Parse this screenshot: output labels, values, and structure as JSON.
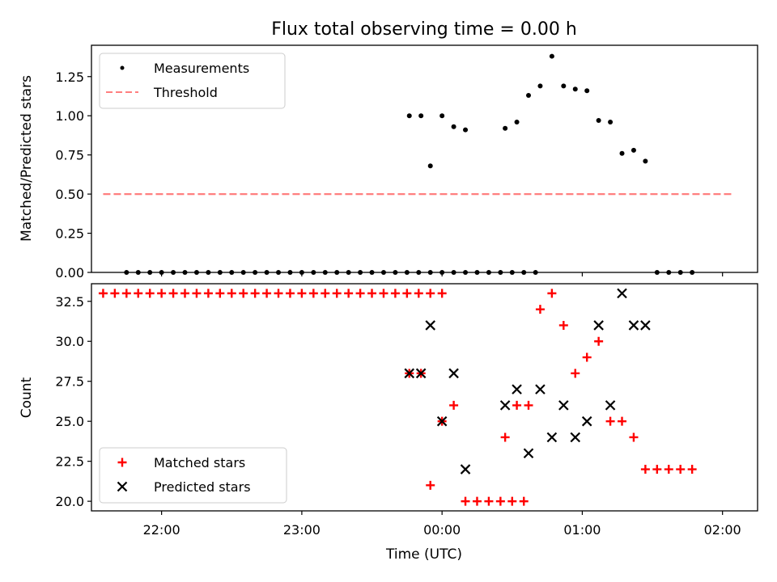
{
  "chart_data": [
    {
      "type": "scatter",
      "title": "Flux total observing time = 0.00 h",
      "xlabel": "",
      "ylabel": "Matched/Predicted stars",
      "x_unit": "time (UTC)",
      "xlim": [
        "21:30",
        "02:15"
      ],
      "ylim": [
        0,
        1.45
      ],
      "yticks": [
        0.0,
        0.25,
        0.5,
        0.75,
        1.0,
        1.25
      ],
      "ytick_labels": [
        "0.00",
        "0.25",
        "0.50",
        "0.75",
        "1.00",
        "1.25"
      ],
      "legend_position": "upper left",
      "grid": false,
      "series": [
        {
          "name": "Measurements",
          "marker": "dot",
          "color": "#000000",
          "points": [
            [
              "21:45",
              0
            ],
            [
              "21:50",
              0
            ],
            [
              "21:55",
              0
            ],
            [
              "22:00",
              0
            ],
            [
              "22:05",
              0
            ],
            [
              "22:10",
              0
            ],
            [
              "22:15",
              0
            ],
            [
              "22:20",
              0
            ],
            [
              "22:25",
              0
            ],
            [
              "22:30",
              0
            ],
            [
              "22:35",
              0
            ],
            [
              "22:40",
              0
            ],
            [
              "22:45",
              0
            ],
            [
              "22:50",
              0
            ],
            [
              "22:55",
              0
            ],
            [
              "23:00",
              0
            ],
            [
              "23:05",
              0
            ],
            [
              "23:10",
              0
            ],
            [
              "23:15",
              0
            ],
            [
              "23:20",
              0
            ],
            [
              "23:25",
              0
            ],
            [
              "23:30",
              0
            ],
            [
              "23:35",
              0
            ],
            [
              "23:40",
              0
            ],
            [
              "23:45",
              0
            ],
            [
              "23:50",
              0
            ],
            [
              "23:55",
              0
            ],
            [
              "00:00",
              0
            ],
            [
              "00:05",
              0
            ],
            [
              "00:10",
              0
            ],
            [
              "00:15",
              0
            ],
            [
              "00:20",
              0
            ],
            [
              "00:25",
              0
            ],
            [
              "00:30",
              0
            ],
            [
              "00:35",
              0
            ],
            [
              "00:40",
              0
            ],
            [
              "23:46",
              1.0
            ],
            [
              "23:51",
              1.0
            ],
            [
              "23:55",
              0.68
            ],
            [
              "00:00",
              1.0
            ],
            [
              "00:05",
              0.93
            ],
            [
              "00:10",
              0.91
            ],
            [
              "00:27",
              0.92
            ],
            [
              "00:32",
              0.96
            ],
            [
              "00:37",
              1.13
            ],
            [
              "00:42",
              1.19
            ],
            [
              "00:47",
              1.38
            ],
            [
              "00:52",
              1.19
            ],
            [
              "00:57",
              1.17
            ],
            [
              "01:02",
              1.16
            ],
            [
              "01:07",
              0.97
            ],
            [
              "01:12",
              0.96
            ],
            [
              "01:17",
              0.76
            ],
            [
              "01:22",
              0.78
            ],
            [
              "01:27",
              0.71
            ],
            [
              "01:32",
              0
            ],
            [
              "01:37",
              0
            ],
            [
              "01:42",
              0
            ],
            [
              "01:47",
              0
            ]
          ]
        },
        {
          "name": "Threshold",
          "marker": "dashed-line",
          "color": "#ff7f7f",
          "points": [
            [
              "21:35",
              0.5
            ],
            [
              "02:05",
              0.5
            ]
          ]
        }
      ]
    },
    {
      "type": "scatter",
      "title": "",
      "xlabel": "Time (UTC)",
      "ylabel": "Count",
      "x_unit": "time (UTC)",
      "xlim": [
        "21:30",
        "02:15"
      ],
      "ylim": [
        19.4,
        33.6
      ],
      "xticks": [
        "22:00",
        "23:00",
        "00:00",
        "01:00",
        "02:00"
      ],
      "yticks": [
        20.0,
        22.5,
        25.0,
        27.5,
        30.0,
        32.5
      ],
      "ytick_labels": [
        "20.0",
        "22.5",
        "25.0",
        "27.5",
        "30.0",
        "32.5"
      ],
      "legend_position": "lower left",
      "grid": false,
      "series": [
        {
          "name": "Matched stars",
          "marker": "plus",
          "color": "#ff0000",
          "points": [
            [
              "21:35",
              33
            ],
            [
              "21:40",
              33
            ],
            [
              "21:45",
              33
            ],
            [
              "21:50",
              33
            ],
            [
              "21:55",
              33
            ],
            [
              "22:00",
              33
            ],
            [
              "22:05",
              33
            ],
            [
              "22:10",
              33
            ],
            [
              "22:15",
              33
            ],
            [
              "22:20",
              33
            ],
            [
              "22:25",
              33
            ],
            [
              "22:30",
              33
            ],
            [
              "22:35",
              33
            ],
            [
              "22:40",
              33
            ],
            [
              "22:45",
              33
            ],
            [
              "22:50",
              33
            ],
            [
              "22:55",
              33
            ],
            [
              "23:00",
              33
            ],
            [
              "23:05",
              33
            ],
            [
              "23:10",
              33
            ],
            [
              "23:15",
              33
            ],
            [
              "23:20",
              33
            ],
            [
              "23:25",
              33
            ],
            [
              "23:30",
              33
            ],
            [
              "23:35",
              33
            ],
            [
              "23:40",
              33
            ],
            [
              "23:45",
              33
            ],
            [
              "23:50",
              33
            ],
            [
              "23:55",
              33
            ],
            [
              "00:00",
              33
            ],
            [
              "23:46",
              28
            ],
            [
              "23:51",
              28
            ],
            [
              "23:55",
              21
            ],
            [
              "00:00",
              25
            ],
            [
              "00:05",
              26
            ],
            [
              "00:10",
              20
            ],
            [
              "00:15",
              20
            ],
            [
              "00:20",
              20
            ],
            [
              "00:25",
              20
            ],
            [
              "00:30",
              20
            ],
            [
              "00:35",
              20
            ],
            [
              "00:27",
              24
            ],
            [
              "00:32",
              26
            ],
            [
              "00:37",
              26
            ],
            [
              "00:42",
              32
            ],
            [
              "00:47",
              33
            ],
            [
              "00:52",
              31
            ],
            [
              "00:57",
              28
            ],
            [
              "01:02",
              29
            ],
            [
              "01:07",
              30
            ],
            [
              "01:12",
              25
            ],
            [
              "01:17",
              25
            ],
            [
              "01:22",
              24
            ],
            [
              "01:27",
              22
            ],
            [
              "01:32",
              22
            ],
            [
              "01:37",
              22
            ],
            [
              "01:42",
              22
            ],
            [
              "01:47",
              22
            ]
          ]
        },
        {
          "name": "Predicted stars",
          "marker": "x",
          "color": "#000000",
          "points": [
            [
              "23:46",
              28
            ],
            [
              "23:51",
              28
            ],
            [
              "23:55",
              31
            ],
            [
              "00:00",
              25
            ],
            [
              "00:05",
              28
            ],
            [
              "00:10",
              22
            ],
            [
              "00:27",
              26
            ],
            [
              "00:32",
              27
            ],
            [
              "00:37",
              23
            ],
            [
              "00:42",
              27
            ],
            [
              "00:47",
              24
            ],
            [
              "00:52",
              26
            ],
            [
              "00:57",
              24
            ],
            [
              "01:02",
              25
            ],
            [
              "01:07",
              31
            ],
            [
              "01:12",
              26
            ],
            [
              "01:17",
              33
            ],
            [
              "01:22",
              31
            ],
            [
              "01:27",
              31
            ]
          ]
        }
      ]
    }
  ]
}
